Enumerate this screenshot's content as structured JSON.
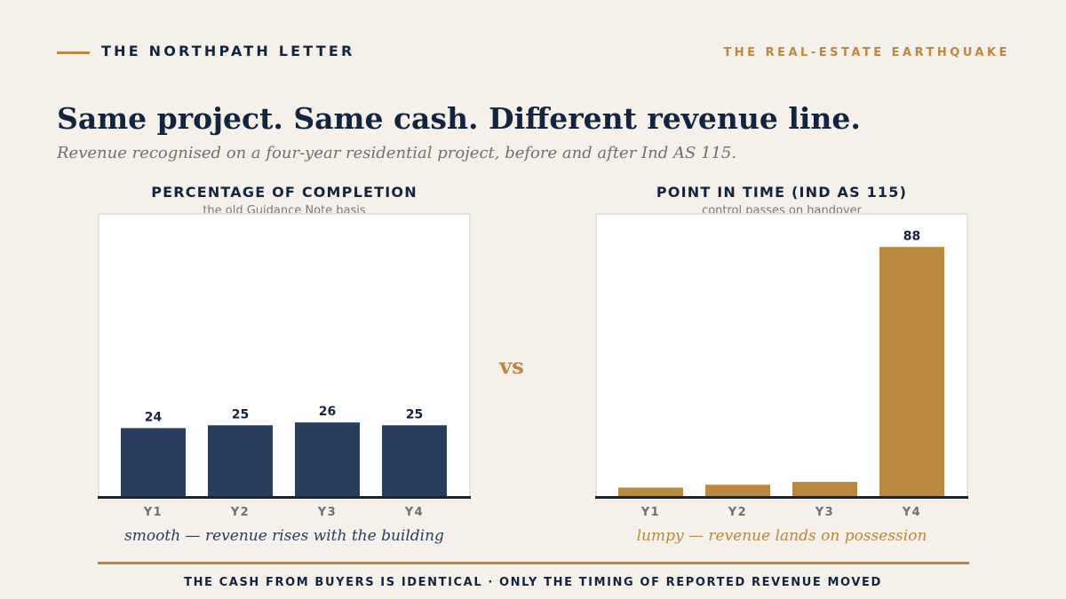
{
  "header": {
    "brand": "THE NORTHPATH LETTER",
    "series_tag": "THE REAL-ESTATE EARTHQUAKE"
  },
  "headline": "Same project. Same cash. Different revenue line.",
  "subhead": "Revenue recognised on a four-year residential project, before and after Ind AS 115.",
  "vs_label": "vs",
  "footer": "THE CASH FROM BUYERS IS IDENTICAL · ONLY THE TIMING OF REPORTED REVENUE MOVED",
  "colors": {
    "navy": "#13243f",
    "bar_navy": "#283e5c",
    "gold": "#b8893f",
    "background": "#f5f0ea"
  },
  "chart_data": [
    {
      "type": "bar",
      "title": "PERCENTAGE OF COMPLETION",
      "subtitle": "the old Guidance Note basis",
      "caption": "smooth — revenue rises with the building",
      "categories": [
        "Y1",
        "Y2",
        "Y3",
        "Y4"
      ],
      "values": [
        24,
        25,
        26,
        25
      ],
      "show_labels": true,
      "color": "#283e5c",
      "caption_color": "#283e5c",
      "ylim": [
        0,
        100
      ]
    },
    {
      "type": "bar",
      "title": "POINT IN TIME (IND AS 115)",
      "subtitle": "control passes on handover",
      "caption": "lumpy — revenue lands on possession",
      "categories": [
        "Y1",
        "Y2",
        "Y3",
        "Y4"
      ],
      "values": [
        3,
        4,
        5,
        88
      ],
      "labeled_values": [
        null,
        null,
        null,
        88
      ],
      "color": "#b8893f",
      "caption_color": "#b8893f",
      "ylim": [
        0,
        100
      ]
    }
  ]
}
